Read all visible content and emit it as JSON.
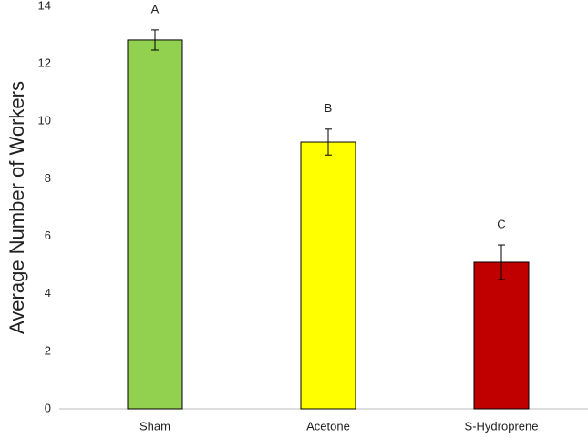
{
  "chart_data": {
    "type": "bar",
    "y_label": "Average Number of Workers",
    "categories": [
      "Sham",
      "Acetone",
      "S-Hydroprene"
    ],
    "values": [
      12.83,
      9.28,
      5.1
    ],
    "errors": [
      0.35,
      0.45,
      0.6
    ],
    "colors": [
      "#92d050",
      "#ffff00",
      "#c00000"
    ],
    "annotations": [
      "A",
      "B",
      "C"
    ],
    "ylim": [
      0,
      14
    ],
    "yticks": [
      0,
      2,
      4,
      6,
      8,
      10,
      12,
      14
    ],
    "grid": false
  }
}
